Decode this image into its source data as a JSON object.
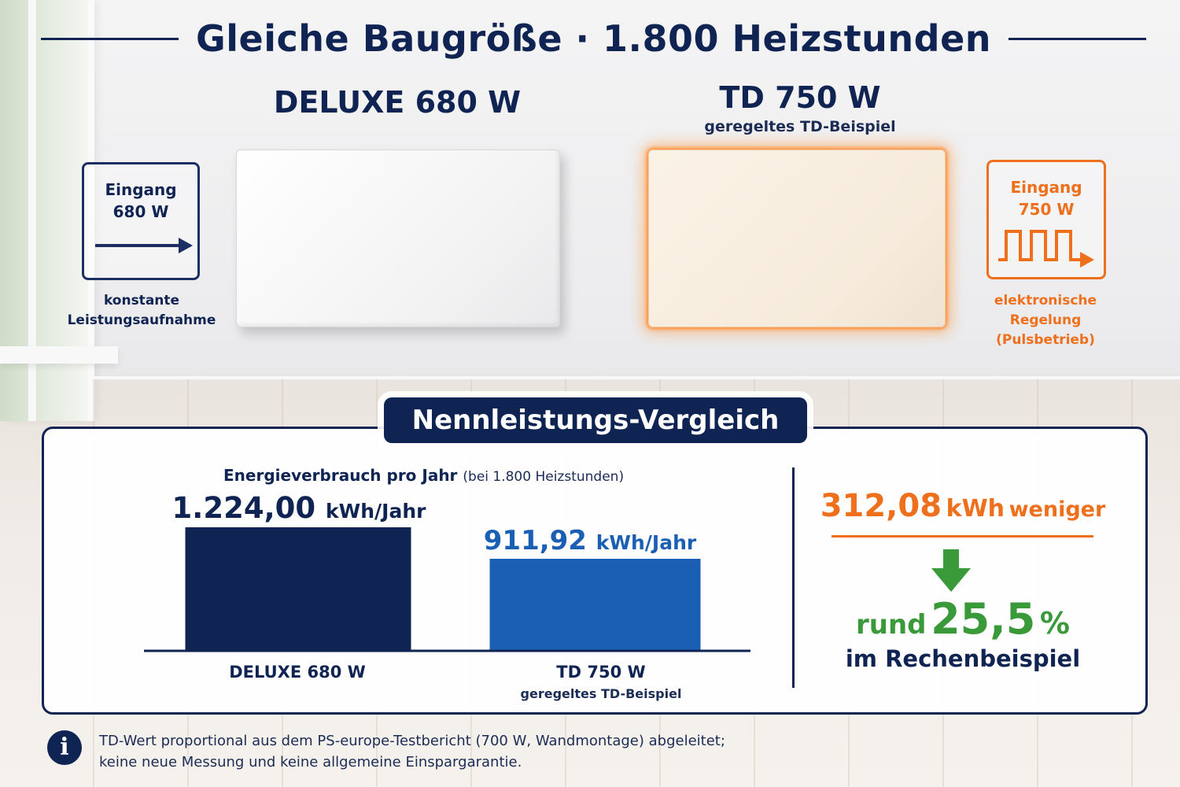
{
  "headline": "Gleiche Baugröße · 1.800 Heizstunden",
  "products": {
    "left": {
      "title": "DELUXE 680 W",
      "input_line1": "Eingang",
      "input_line2": "680 W",
      "input_icon": "arrow-right-icon",
      "caption_line1": "konstante",
      "caption_line2": "Leistungsaufnahme"
    },
    "right": {
      "title": "TD 750 W",
      "subtitle": "geregeltes TD-Beispiel",
      "input_line1": "Eingang",
      "input_line2": "750 W",
      "input_icon": "pulse-wave-icon",
      "caption_line1": "elektronische",
      "caption_line2": "Regelung (Pulsbetrieb)"
    }
  },
  "comparison": {
    "tab_label": "Nennleistungs-Vergleich",
    "chart_title": "Energieverbrauch pro Jahr",
    "chart_subtitle": "(bei 1.800 Heizstunden)",
    "saving_value": "312,08",
    "saving_unit": "kWh",
    "saving_word": "weniger",
    "percent_prefix": "rund",
    "percent_value": "25,5",
    "percent_sign": "%",
    "percent_suffix": "im Rechenbeispiel"
  },
  "chart_data": {
    "type": "bar",
    "title": "Energieverbrauch pro Jahr",
    "subtitle": "(bei 1.800 Heizstunden)",
    "unit": "kWh/Jahr",
    "ylim": [
      0,
      1224
    ],
    "grid": false,
    "legend": "none",
    "categories": [
      "DELUXE 680 W",
      "TD 750 W"
    ],
    "category_sublabels": [
      "",
      "geregeltes TD-Beispiel"
    ],
    "values": [
      1224.0,
      911.92
    ],
    "value_labels": [
      "1.224,00",
      "911,92"
    ],
    "colors": [
      "#0f2452",
      "#1a5fb4"
    ]
  },
  "footnote": {
    "icon": "info-icon",
    "line1": "TD-Wert proportional aus dem PS-europe-Testbericht (700 W, Wandmontage) abgeleitet;",
    "line2": "keine neue Messung und keine allgemeine Einspargarantie."
  },
  "colors": {
    "navy": "#0f2452",
    "blue": "#1a5fb4",
    "orange": "#ee6f1c",
    "green": "#3a9a3a"
  }
}
